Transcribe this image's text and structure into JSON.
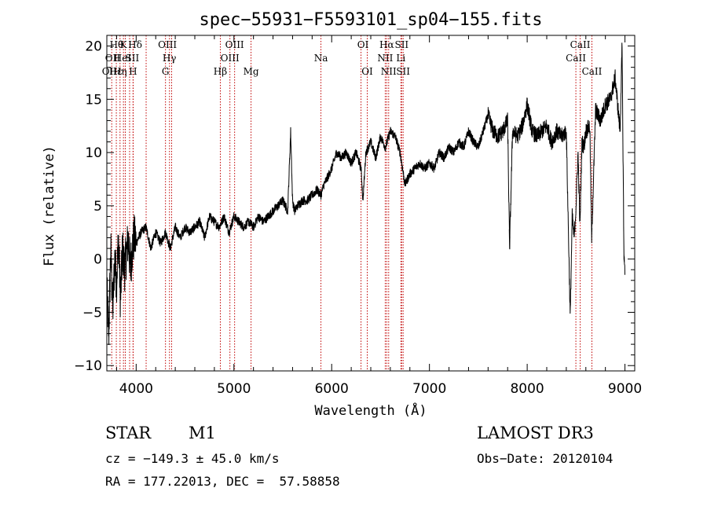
{
  "chart_data": {
    "type": "line",
    "title": "spec−55931−F5593101_sp04−155.fits",
    "xlabel": "Wavelength (Å)",
    "ylabel": "Flux (relative)",
    "xlim": [
      3700,
      9100
    ],
    "ylim": [
      -10.5,
      21
    ],
    "xticks": [
      4000,
      5000,
      6000,
      7000,
      8000,
      9000
    ],
    "yticks": [
      -10,
      -5,
      0,
      5,
      10,
      15,
      20
    ],
    "xtick_labels": [
      "4000",
      "5000",
      "6000",
      "7000",
      "8000",
      "9000"
    ],
    "ytick_labels": [
      "−10",
      "−5",
      "0",
      "5",
      "10",
      "15",
      "20"
    ],
    "grid": false,
    "series": [
      {
        "name": "flux",
        "x": [
          3700,
          3720,
          3740,
          3760,
          3780,
          3800,
          3820,
          3840,
          3860,
          3880,
          3900,
          3920,
          3940,
          3960,
          3980,
          4000,
          4050,
          4100,
          4150,
          4200,
          4250,
          4300,
          4350,
          4400,
          4450,
          4500,
          4550,
          4600,
          4650,
          4700,
          4750,
          4800,
          4850,
          4900,
          4950,
          5000,
          5050,
          5100,
          5150,
          5200,
          5250,
          5300,
          5350,
          5400,
          5450,
          5500,
          5550,
          5580,
          5600,
          5620,
          5650,
          5700,
          5750,
          5800,
          5850,
          5890,
          5920,
          5950,
          6000,
          6050,
          6100,
          6150,
          6200,
          6250,
          6300,
          6320,
          6350,
          6400,
          6450,
          6500,
          6550,
          6600,
          6650,
          6700,
          6750,
          6800,
          6850,
          6900,
          6950,
          7000,
          7050,
          7100,
          7150,
          7200,
          7250,
          7300,
          7350,
          7400,
          7450,
          7500,
          7550,
          7600,
          7650,
          7700,
          7750,
          7800,
          7820,
          7850,
          7900,
          7950,
          8000,
          8050,
          8100,
          8150,
          8200,
          8250,
          8300,
          8350,
          8400,
          8440,
          8460,
          8480,
          8500,
          8520,
          8540,
          8560,
          8580,
          8600,
          8640,
          8660,
          8700,
          8750,
          8800,
          8850,
          8900,
          8950,
          8970,
          8990,
          9000
        ],
        "y": [
          -3,
          -7,
          1,
          -5,
          0,
          -2,
          2,
          -4,
          1,
          -1,
          0.5,
          2,
          -1,
          1,
          2,
          1.5,
          2.5,
          3,
          1,
          2.5,
          1.5,
          2.5,
          1,
          3,
          2,
          3,
          2.5,
          3,
          3.5,
          2,
          4,
          3.5,
          3,
          4,
          2.5,
          4,
          3.5,
          3,
          3.5,
          3,
          4,
          3.5,
          4,
          4.5,
          5,
          5.5,
          4.5,
          12,
          5.5,
          4.5,
          5,
          5.5,
          5.5,
          6,
          6.5,
          6,
          7,
          7.5,
          8.5,
          10,
          9.5,
          10,
          9,
          10,
          8.5,
          5.5,
          10,
          11,
          9.5,
          11.5,
          10.5,
          12,
          11.5,
          10,
          7,
          8,
          8.5,
          9,
          8.5,
          9,
          8.5,
          10,
          9.5,
          10.5,
          10,
          11,
          10.5,
          12,
          11,
          10.5,
          12,
          13.5,
          12,
          11.5,
          12,
          13,
          1,
          12,
          11.5,
          12.5,
          14.5,
          12,
          11.5,
          12,
          12.5,
          11,
          12,
          11.5,
          12,
          -5.5,
          4,
          2,
          5,
          10,
          3,
          11,
          10.5,
          12,
          12.5,
          2,
          14,
          13,
          14.5,
          15,
          17,
          12,
          20,
          0,
          -1
        ]
      },
      {
        "name": "reference_lines",
        "style": "dotted red vertical",
        "x": [
          3750,
          3797,
          3835,
          3870,
          3889,
          3933,
          3968,
          3970,
          4102,
          4300,
          4341,
          4363,
          4861,
          4959,
          5007,
          5175,
          5890,
          6300,
          6364,
          6548,
          6563,
          6583,
          6708,
          6716,
          6731,
          8498,
          8542,
          8662
        ]
      }
    ],
    "annotations": [
      {
        "row": 1,
        "x": 3800,
        "text": "Hθ"
      },
      {
        "row": 1,
        "x": 3870,
        "text": "K"
      },
      {
        "row": 1,
        "x": 3990,
        "text": "Hδ"
      },
      {
        "row": 1,
        "x": 4320,
        "text": "OIII"
      },
      {
        "row": 1,
        "x": 5007,
        "text": "OIII"
      },
      {
        "row": 1,
        "x": 6320,
        "text": "OI"
      },
      {
        "row": 1,
        "x": 6563,
        "text": "Hα"
      },
      {
        "row": 1,
        "x": 6716,
        "text": "SII"
      },
      {
        "row": 1,
        "x": 8542,
        "text": "CaII"
      },
      {
        "row": 2,
        "x": 3760,
        "text": "OII"
      },
      {
        "row": 2,
        "x": 3860,
        "text": "HeI"
      },
      {
        "row": 2,
        "x": 3960,
        "text": "SII"
      },
      {
        "row": 2,
        "x": 4340,
        "text": "Hγ"
      },
      {
        "row": 2,
        "x": 4959,
        "text": "OIII"
      },
      {
        "row": 2,
        "x": 5890,
        "text": "Na"
      },
      {
        "row": 2,
        "x": 6548,
        "text": "NII"
      },
      {
        "row": 2,
        "x": 6708,
        "text": "Li"
      },
      {
        "row": 2,
        "x": 8498,
        "text": "CaII"
      },
      {
        "row": 3,
        "x": 3727,
        "text": "OII"
      },
      {
        "row": 3,
        "x": 3790,
        "text": "Hε"
      },
      {
        "row": 3,
        "x": 3835,
        "text": "Hη"
      },
      {
        "row": 3,
        "x": 3968,
        "text": "H"
      },
      {
        "row": 3,
        "x": 4300,
        "text": "G"
      },
      {
        "row": 3,
        "x": 4861,
        "text": "Hβ"
      },
      {
        "row": 3,
        "x": 5175,
        "text": "Mg"
      },
      {
        "row": 3,
        "x": 6364,
        "text": "OI"
      },
      {
        "row": 3,
        "x": 6583,
        "text": "NII"
      },
      {
        "row": 3,
        "x": 6731,
        "text": "SII"
      },
      {
        "row": 3,
        "x": 8662,
        "text": "CaII"
      }
    ],
    "colors": {
      "line": "#000000",
      "reference": "#c00000",
      "axes": "#000000"
    }
  },
  "info": {
    "object_class": "STAR",
    "subclass": "M1",
    "survey": "LAMOST DR3",
    "redshift_velocity": "cz = −149.3 ± 45.0 km/s",
    "obs_date": "Obs−Date: 20120104",
    "coordinates": "RA = 177.22013, DEC =  57.58858"
  }
}
